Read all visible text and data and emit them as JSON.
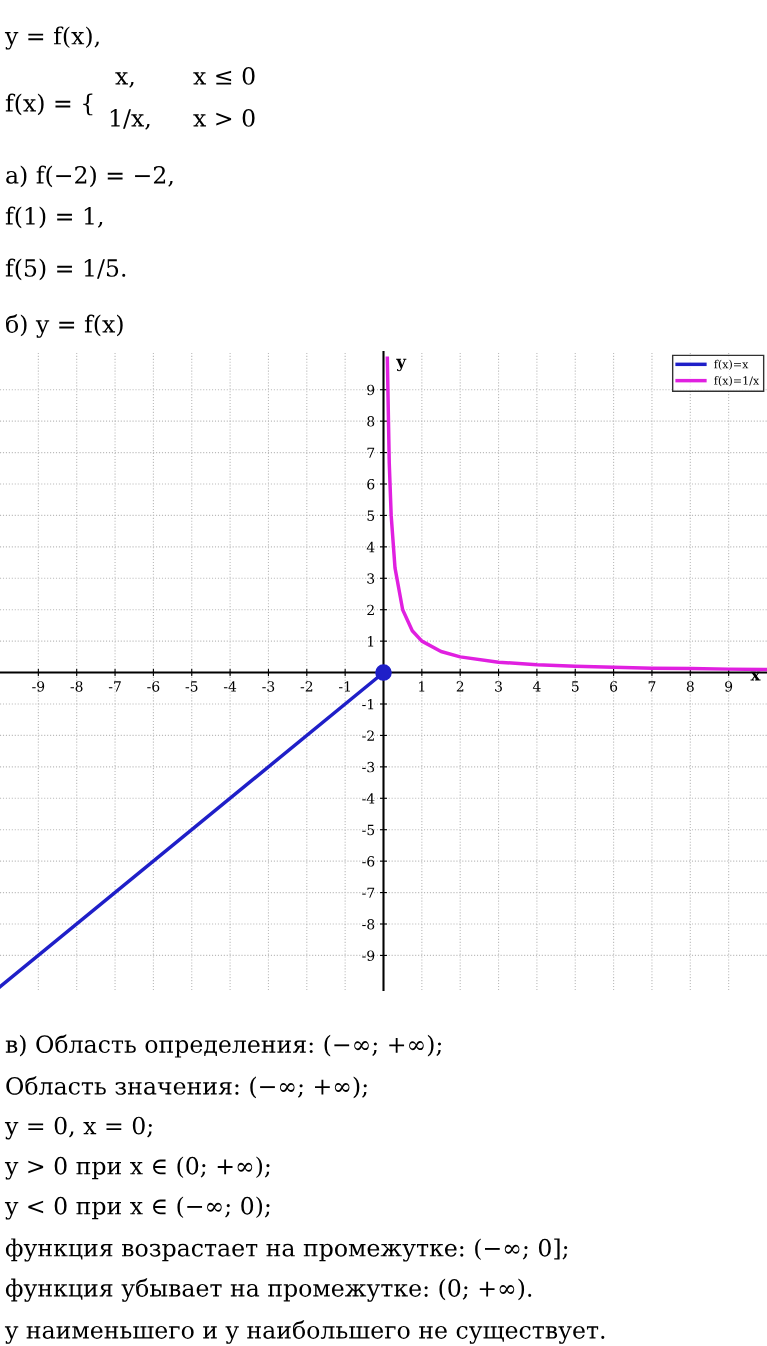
{
  "chart_data": {
    "type": "line",
    "annotations": [
      "y = f(x),",
      "f(x) = {",
      "x,",
      "x ≤ 0",
      "1/x,",
      "x > 0",
      "а) f(−2) = −2,",
      "f(1) = 1,",
      "f(5) = 1/5.",
      "б) y = f(x)",
      "в) Область определения: (−∞; +∞);",
      "Область значения: (−∞; +∞);",
      "y = 0, x = 0;",
      "y > 0 при x ∈ (0; +∞);",
      "y < 0 при x ∈ (−∞; 0);",
      "функция возрастает на промежутке: (−∞; 0];",
      "функция убывает на промежутке: (0; +∞).",
      "y наименьшего и y наибольшего не существует."
    ],
    "xlabel": "x",
    "ylabel": "y",
    "series": [
      {
        "name": "f(x)=x",
        "color": "#1f1fc8",
        "x": [
          -10,
          0
        ],
        "values": [
          -10,
          0
        ]
      },
      {
        "name": "f(x)=1/x",
        "color": "#e020e0",
        "x": [
          0.1,
          0.15,
          0.2,
          0.3,
          0.5,
          0.75,
          1,
          1.5,
          2,
          3,
          4,
          5,
          6,
          7,
          8,
          9,
          10
        ],
        "values": [
          10,
          6.67,
          5,
          3.33,
          2,
          1.33,
          1,
          0.67,
          0.5,
          0.33,
          0.25,
          0.2,
          0.17,
          0.14,
          0.13,
          0.11,
          0.1
        ]
      },
      {
        "type": "scatter",
        "color": "#1f1fc8",
        "x": [
          0
        ],
        "values": [
          0
        ],
        "marker": "circle"
      }
    ],
    "xlim": [
      -10,
      10
    ],
    "ylim": [
      -10.1,
      10.2
    ],
    "xticks": [
      -9,
      -8,
      -7,
      -6,
      -5,
      -4,
      -3,
      -2,
      -1,
      1,
      2,
      3,
      4,
      5,
      6,
      7,
      8,
      9
    ],
    "yticks": [
      -9,
      -8,
      -7,
      -6,
      -5,
      -4,
      -3,
      -2,
      -1,
      1,
      2,
      3,
      4,
      5,
      6,
      7,
      8,
      9
    ],
    "grid": true,
    "legend": "top right",
    "marker": "none",
    "line_style": "solid"
  }
}
